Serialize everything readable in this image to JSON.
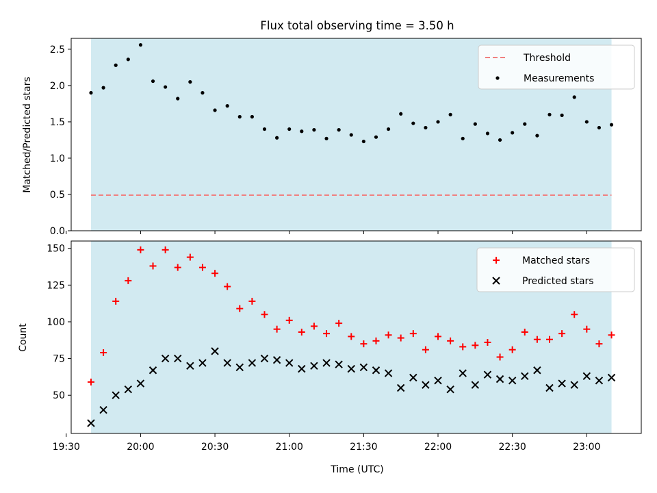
{
  "figure": {
    "title": "Flux total observing time = 3.50 h",
    "xlabel": "Time (UTC)"
  },
  "chart_data": [
    {
      "type": "scatter",
      "ylabel": "Matched/Predicted stars",
      "ylim": [
        0,
        2.65
      ],
      "yticks": [
        "0.0",
        "0.5",
        "1.0",
        "1.5",
        "2.0",
        "2.5"
      ],
      "x_range": [
        "19:32",
        "23:22"
      ],
      "shaded_span": [
        "19:40",
        "23:10"
      ],
      "threshold": 0.49,
      "legend_position": "top-right",
      "series": [
        {
          "name": "Threshold",
          "marker": "dashed-line",
          "color": "#f08080"
        },
        {
          "name": "Measurements",
          "marker": "dot",
          "color": "#000000",
          "x": [
            "19:40",
            "19:45",
            "19:50",
            "19:55",
            "20:00",
            "20:05",
            "20:10",
            "20:15",
            "20:20",
            "20:25",
            "20:30",
            "20:35",
            "20:40",
            "20:45",
            "20:50",
            "20:55",
            "21:00",
            "21:05",
            "21:10",
            "21:15",
            "21:20",
            "21:25",
            "21:30",
            "21:35",
            "21:40",
            "21:45",
            "21:50",
            "21:55",
            "22:00",
            "22:05",
            "22:10",
            "22:15",
            "22:20",
            "22:25",
            "22:30",
            "22:35",
            "22:40",
            "22:45",
            "22:50",
            "22:55",
            "23:00",
            "23:05",
            "23:10"
          ],
          "y": [
            1.9,
            1.97,
            2.28,
            2.36,
            2.56,
            2.06,
            1.98,
            1.82,
            2.05,
            1.9,
            1.66,
            1.72,
            1.57,
            1.57,
            1.4,
            1.28,
            1.4,
            1.37,
            1.39,
            1.27,
            1.39,
            1.32,
            1.23,
            1.29,
            1.4,
            1.61,
            1.48,
            1.42,
            1.5,
            1.6,
            1.27,
            1.47,
            1.34,
            1.25,
            1.35,
            1.47,
            1.31,
            1.6,
            1.59,
            1.84,
            1.5,
            1.42,
            1.46
          ]
        }
      ]
    },
    {
      "type": "scatter",
      "ylabel": "Count",
      "ylim": [
        24,
        155
      ],
      "yticks": [
        "50",
        "75",
        "100",
        "125",
        "150"
      ],
      "x_range": [
        "19:32",
        "23:22"
      ],
      "shaded_span": [
        "19:40",
        "23:10"
      ],
      "legend_position": "top-right",
      "series": [
        {
          "name": "Matched stars",
          "marker": "plus",
          "color": "#ff0000",
          "x": [
            "19:40",
            "19:45",
            "19:50",
            "19:55",
            "20:00",
            "20:05",
            "20:10",
            "20:15",
            "20:20",
            "20:25",
            "20:30",
            "20:35",
            "20:40",
            "20:45",
            "20:50",
            "20:55",
            "21:00",
            "21:05",
            "21:10",
            "21:15",
            "21:20",
            "21:25",
            "21:30",
            "21:35",
            "21:40",
            "21:45",
            "21:50",
            "21:55",
            "22:00",
            "22:05",
            "22:10",
            "22:15",
            "22:20",
            "22:25",
            "22:30",
            "22:35",
            "22:40",
            "22:45",
            "22:50",
            "22:55",
            "23:00",
            "23:05",
            "23:10"
          ],
          "y": [
            59,
            79,
            114,
            128,
            149,
            138,
            149,
            137,
            144,
            137,
            133,
            124,
            109,
            114,
            105,
            95,
            101,
            93,
            97,
            92,
            99,
            90,
            85,
            87,
            91,
            89,
            92,
            81,
            90,
            87,
            83,
            84,
            86,
            76,
            81,
            93,
            88,
            88,
            92,
            105,
            95,
            85,
            91
          ]
        },
        {
          "name": "Predicted stars",
          "marker": "x",
          "color": "#000000",
          "x": [
            "19:40",
            "19:45",
            "19:50",
            "19:55",
            "20:00",
            "20:05",
            "20:10",
            "20:15",
            "20:20",
            "20:25",
            "20:30",
            "20:35",
            "20:40",
            "20:45",
            "20:50",
            "20:55",
            "21:00",
            "21:05",
            "21:10",
            "21:15",
            "21:20",
            "21:25",
            "21:30",
            "21:35",
            "21:40",
            "21:45",
            "21:50",
            "21:55",
            "22:00",
            "22:05",
            "22:10",
            "22:15",
            "22:20",
            "22:25",
            "22:30",
            "22:35",
            "22:40",
            "22:45",
            "22:50",
            "22:55",
            "23:00",
            "23:05",
            "23:10"
          ],
          "y": [
            31,
            40,
            50,
            54,
            58,
            67,
            75,
            75,
            70,
            72,
            80,
            72,
            69,
            72,
            75,
            74,
            72,
            68,
            70,
            72,
            71,
            68,
            69,
            67,
            65,
            55,
            62,
            57,
            60,
            54,
            65,
            57,
            64,
            61,
            60,
            63,
            67,
            55,
            58,
            57,
            63,
            60,
            62
          ]
        }
      ]
    }
  ],
  "xticks": [
    "19:30",
    "20:00",
    "20:30",
    "21:00",
    "21:30",
    "22:00",
    "22:30",
    "23:00"
  ],
  "colors": {
    "shade": "#add8e6",
    "threshold": "#f08080",
    "matched": "#ff0000",
    "predicted": "#000000",
    "measurement": "#000000"
  }
}
